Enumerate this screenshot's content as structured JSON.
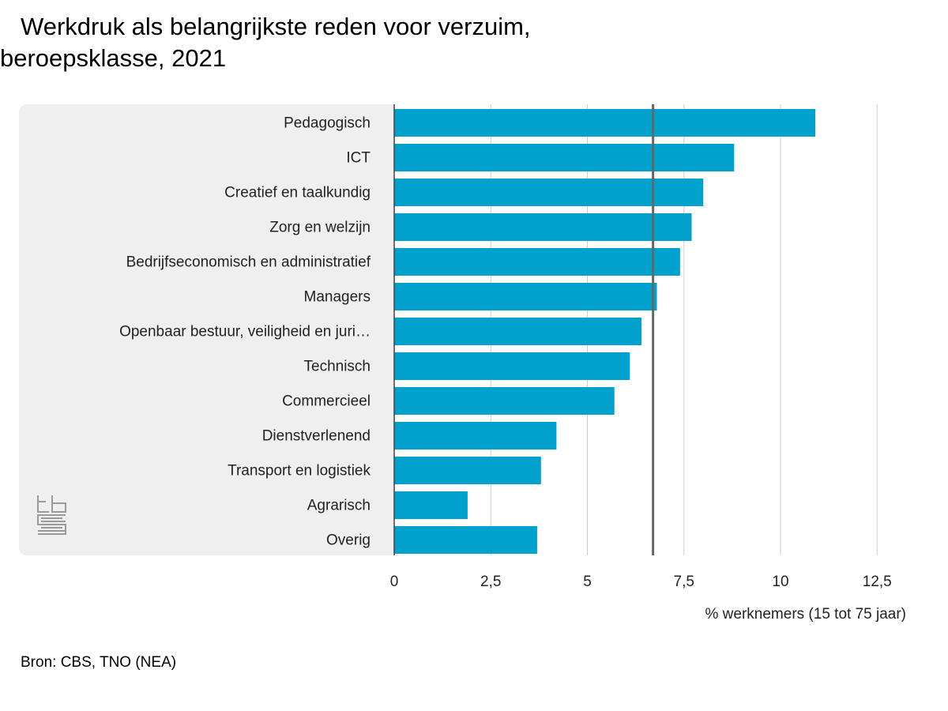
{
  "title_line1": "Werkdruk als belangrijkste reden voor verzuim,",
  "title_line2": "beroepsklasse, 2021",
  "source": "Bron: CBS, TNO (NEA)",
  "colors": {
    "bar": "#00a1cd",
    "panel": "#efefef",
    "grid": "#cccccc",
    "reference_line": "#666666"
  },
  "chart_data": {
    "type": "bar",
    "orientation": "horizontal",
    "categories": [
      "Pedagogisch",
      "ICT",
      "Creatief en taalkundig",
      "Zorg en welzijn",
      "Bedrijfseconomisch en administratief",
      "Managers",
      "Openbaar bestuur, veiligheid en juri…",
      "Technisch",
      "Commercieel",
      "Dienstverlenend",
      "Transport en logistiek",
      "Agrarisch",
      "Overig"
    ],
    "values": [
      10.9,
      8.8,
      8.0,
      7.7,
      7.4,
      6.8,
      6.4,
      6.1,
      5.7,
      4.2,
      3.8,
      1.9,
      3.7
    ],
    "reference_value": 6.7,
    "xlabel": "% werknemers (15 tot 75 jaar)",
    "xlim": [
      0,
      12.5
    ],
    "xticks": [
      0,
      2.5,
      5,
      7.5,
      10,
      12.5
    ],
    "xtick_labels": [
      "0",
      "2,5",
      "5",
      "7,5",
      "10",
      "12,5"
    ],
    "grid": true
  }
}
